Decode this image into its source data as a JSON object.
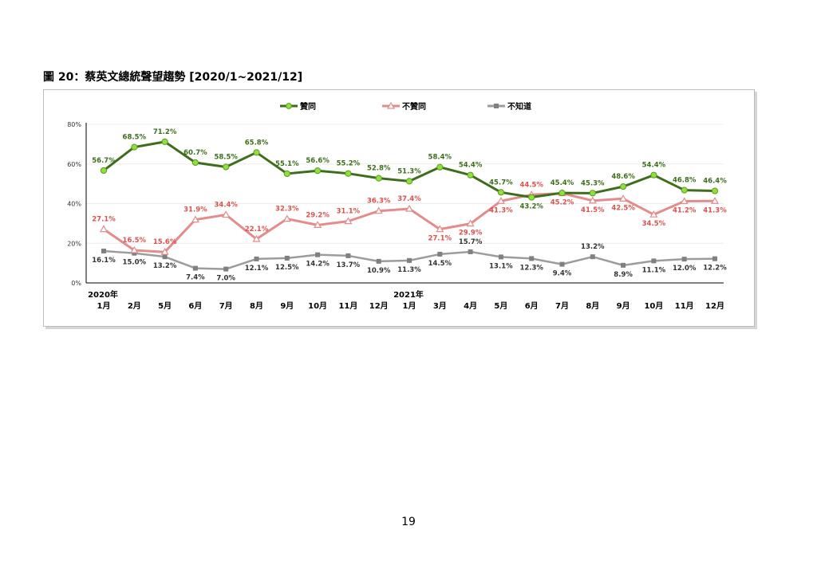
{
  "figure_title": "圖 20：蔡英文總統聲望趨勢  [2020/1~2021/12]",
  "page_number": "19",
  "colors": {
    "approve": "#3d6e1c",
    "approve_marker": "#8ee03a",
    "disapprove": "#e48b8b",
    "dontknow": "#9c9c9c"
  },
  "chart_data": {
    "type": "line",
    "title": "圖 20：蔡英文總統聲望趨勢  [2020/1~2021/12]",
    "ylim": [
      0,
      80
    ],
    "yticks": [
      "0%",
      "20%",
      "40%",
      "60%",
      "80%"
    ],
    "grid": true,
    "legend_position": "top",
    "categories": [
      "1月",
      "2月",
      "5月",
      "6月",
      "7月",
      "8月",
      "9月",
      "10月",
      "11月",
      "12月",
      "1月",
      "3月",
      "4月",
      "5月",
      "6月",
      "7月",
      "8月",
      "9月",
      "10月",
      "11月",
      "12月"
    ],
    "year_labels": [
      {
        "index": 0,
        "label": "2020年"
      },
      {
        "index": 10,
        "label": "2021年"
      }
    ],
    "series": [
      {
        "name": "贊同",
        "values": [
          56.7,
          68.5,
          71.2,
          60.7,
          58.5,
          65.8,
          55.1,
          56.6,
          55.2,
          52.8,
          51.3,
          58.4,
          54.4,
          45.7,
          43.2,
          45.4,
          45.3,
          48.6,
          54.4,
          46.8,
          46.4
        ],
        "labels": [
          "56.7%",
          "68.5%",
          "71.2%",
          "60.7%",
          "58.5%",
          "65.8%",
          "55.1%",
          "56.6%",
          "55.2%",
          "52.8%",
          "51.3%",
          "58.4%",
          "54.4%",
          "45.7%",
          "43.2%",
          "45.4%",
          "45.3%",
          "48.6%",
          "54.4%",
          "46.8%",
          "46.4%"
        ]
      },
      {
        "name": "不贊同",
        "values": [
          27.1,
          16.5,
          15.6,
          31.9,
          34.4,
          22.1,
          32.3,
          29.2,
          31.1,
          36.3,
          37.4,
          27.1,
          29.9,
          41.3,
          44.5,
          45.2,
          41.5,
          42.5,
          34.5,
          41.2,
          41.3
        ],
        "labels": [
          "27.1%",
          "16.5%",
          "15.6%",
          "31.9%",
          "34.4%",
          "22.1%",
          "32.3%",
          "29.2%",
          "31.1%",
          "36.3%",
          "37.4%",
          "27.1%",
          "29.9%",
          "41.3%",
          "44.5%",
          "45.2%",
          "41.5%",
          "42.5%",
          "34.5%",
          "41.2%",
          "41.3%"
        ]
      },
      {
        "name": "不知道",
        "values": [
          16.1,
          15.0,
          13.2,
          7.4,
          7.0,
          12.1,
          12.5,
          14.2,
          13.7,
          10.9,
          11.3,
          14.5,
          15.7,
          13.1,
          12.3,
          9.4,
          13.2,
          8.9,
          11.1,
          12.0,
          12.2
        ],
        "labels": [
          "16.1%",
          "15.0%",
          "13.2%",
          "7.4%",
          "7.0%",
          "12.1%",
          "12.5%",
          "14.2%",
          "13.7%",
          "10.9%",
          "11.3%",
          "14.5%",
          "15.7%",
          "13.1%",
          "12.3%",
          "9.4%",
          "13.2%",
          "8.9%",
          "11.1%",
          "12.0%",
          "12.2%"
        ]
      }
    ]
  }
}
